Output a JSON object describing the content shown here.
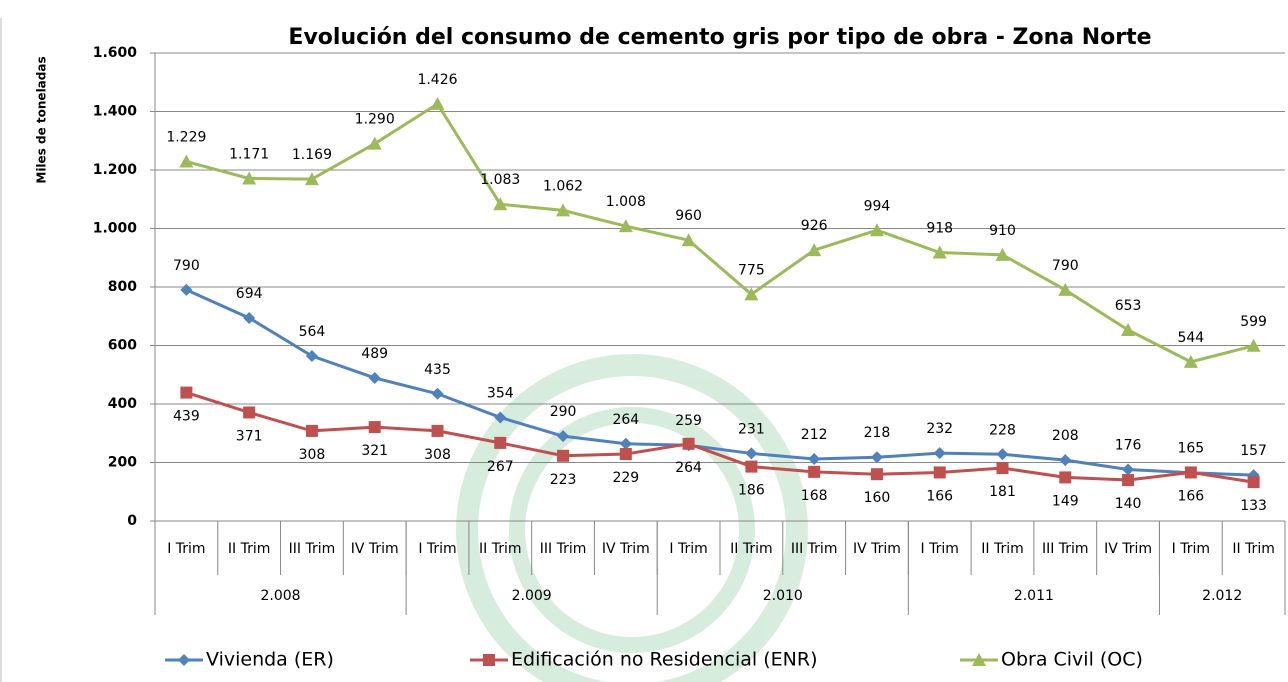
{
  "chart_data": {
    "type": "line",
    "title": "Evolución del consumo de cemento gris por tipo de obra - Zona Norte",
    "y_label": "Miles de toneladas",
    "groups": [
      {
        "label": "2.008",
        "categories": [
          "I Trim",
          "II Trim",
          "III Trim",
          "IV Trim"
        ]
      },
      {
        "label": "2.009",
        "categories": [
          "I Trim",
          "II Trim",
          "III Trim",
          "IV Trim"
        ]
      },
      {
        "label": "2.010",
        "categories": [
          "I Trim",
          "II Trim",
          "III Trim",
          "IV Trim"
        ]
      },
      {
        "label": "2.011",
        "categories": [
          "I Trim",
          "II Trim",
          "III Trim",
          "IV Trim"
        ]
      },
      {
        "label": "2.012",
        "categories": [
          "I Trim",
          "II Trim"
        ]
      }
    ],
    "series": [
      {
        "name": "Vivienda (ER)",
        "color": "#4f81bd",
        "marker": "diamond",
        "label_position": "above",
        "values": [
          790,
          694,
          564,
          489,
          435,
          354,
          290,
          264,
          259,
          231,
          212,
          218,
          232,
          228,
          208,
          176,
          165,
          157
        ]
      },
      {
        "name": "Edificación no Residencial (ENR)",
        "color": "#c0504d",
        "marker": "square",
        "label_position": "below",
        "values": [
          439,
          371,
          308,
          321,
          308,
          267,
          223,
          229,
          264,
          186,
          168,
          160,
          166,
          181,
          149,
          140,
          166,
          133
        ]
      },
      {
        "name": "Obra Civil (OC)",
        "color": "#9bbb59",
        "marker": "triangle",
        "label_position": "above",
        "values": [
          1229,
          1171,
          1169,
          1290,
          1426,
          1083,
          1062,
          1008,
          960,
          775,
          926,
          994,
          918,
          910,
          790,
          653,
          544,
          599
        ],
        "value_labels": [
          "1.229",
          "1.171",
          "1.169",
          "1.290",
          "1.426",
          "1.083",
          "1.062",
          "1.008",
          "960",
          "775",
          "926",
          "994",
          "918",
          "910",
          "790",
          "653",
          "544",
          "599"
        ]
      }
    ],
    "ylim": [
      0,
      1600
    ],
    "yticks": [
      0,
      200,
      400,
      600,
      800,
      {
        "value": 1000,
        "label": "1.000"
      },
      {
        "value": 1200,
        "label": "1.200"
      },
      {
        "value": 1400,
        "label": "1.400"
      },
      {
        "value": 1600,
        "label": "1.600"
      }
    ],
    "grid": true,
    "legend": "bottom"
  }
}
